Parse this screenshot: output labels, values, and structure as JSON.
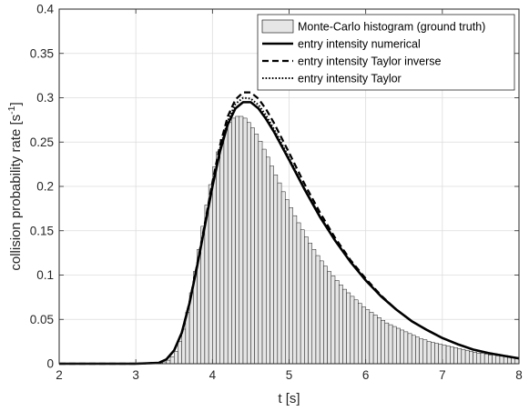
{
  "chart_data": {
    "type": "bar",
    "xlabel": "t [s]",
    "ylabel": "collision probability rate [s",
    "ylabel_superscript": "-1",
    "ylabel_close": "]",
    "xlim": [
      2,
      8
    ],
    "ylim": [
      0,
      0.4
    ],
    "xticks": [
      "2",
      "3",
      "4",
      "5",
      "6",
      "7",
      "8"
    ],
    "yticks": [
      "0",
      "0.05",
      "0.1",
      "0.15",
      "0.2",
      "0.25",
      "0.3",
      "0.35",
      "0.4"
    ],
    "grid": true,
    "legend_position": "top-right",
    "histogram": {
      "name": "Monte-Carlo histogram (ground truth)",
      "bin_start": 3.3,
      "bin_width": 0.05,
      "values": [
        0.001,
        0.002,
        0.004,
        0.008,
        0.014,
        0.025,
        0.039,
        0.058,
        0.08,
        0.104,
        0.129,
        0.155,
        0.179,
        0.202,
        0.222,
        0.239,
        0.253,
        0.264,
        0.272,
        0.277,
        0.279,
        0.279,
        0.277,
        0.272,
        0.266,
        0.259,
        0.251,
        0.242,
        0.233,
        0.223,
        0.213,
        0.204,
        0.194,
        0.185,
        0.176,
        0.167,
        0.159,
        0.151,
        0.143,
        0.136,
        0.129,
        0.122,
        0.116,
        0.11,
        0.104,
        0.099,
        0.094,
        0.089,
        0.084,
        0.08,
        0.076,
        0.072,
        0.068,
        0.064,
        0.061,
        0.058,
        0.055,
        0.052,
        0.049,
        0.046,
        0.044,
        0.042,
        0.04,
        0.038,
        0.036,
        0.034,
        0.032,
        0.03,
        0.028,
        0.027,
        0.025,
        0.024,
        0.023,
        0.022,
        0.021,
        0.02,
        0.019,
        0.018,
        0.017,
        0.016,
        0.015,
        0.014,
        0.013,
        0.012,
        0.012,
        0.011,
        0.01,
        0.01,
        0.009,
        0.009,
        0.008,
        0.008,
        0.007,
        0.007
      ]
    },
    "series": [
      {
        "name": "entry intensity numerical",
        "style": "solid",
        "x": [
          2,
          3,
          3.3,
          3.4,
          3.5,
          3.6,
          3.7,
          3.8,
          3.9,
          4.0,
          4.1,
          4.2,
          4.3,
          4.4,
          4.5,
          4.6,
          4.7,
          4.8,
          4.9,
          5.0,
          5.2,
          5.4,
          5.6,
          5.8,
          6.0,
          6.2,
          6.4,
          6.6,
          6.8,
          7.0,
          7.2,
          7.4,
          7.6,
          7.8,
          8.0
        ],
        "y": [
          0,
          0,
          0.001,
          0.005,
          0.015,
          0.035,
          0.068,
          0.11,
          0.155,
          0.2,
          0.24,
          0.27,
          0.288,
          0.295,
          0.295,
          0.288,
          0.276,
          0.262,
          0.246,
          0.23,
          0.197,
          0.166,
          0.139,
          0.115,
          0.094,
          0.076,
          0.061,
          0.048,
          0.038,
          0.029,
          0.022,
          0.016,
          0.012,
          0.009,
          0.006
        ]
      },
      {
        "name": "entry intensity Taylor inverse",
        "style": "dashed",
        "x": [
          2,
          3,
          3.3,
          3.4,
          3.5,
          3.6,
          3.7,
          3.8,
          3.9,
          4.0,
          4.1,
          4.2,
          4.3,
          4.4,
          4.5,
          4.6,
          4.7,
          4.8,
          4.9,
          5.0,
          5.2,
          5.4,
          5.6,
          5.8,
          6.0,
          6.2,
          6.4,
          6.6,
          6.8,
          7.0,
          7.2,
          7.4,
          7.6,
          7.8,
          8.0
        ],
        "y": [
          0,
          0,
          0.001,
          0.005,
          0.015,
          0.035,
          0.069,
          0.112,
          0.158,
          0.205,
          0.247,
          0.279,
          0.298,
          0.306,
          0.306,
          0.299,
          0.287,
          0.272,
          0.255,
          0.238,
          0.203,
          0.171,
          0.142,
          0.117,
          0.096,
          0.077,
          0.061,
          0.048,
          0.038,
          0.029,
          0.022,
          0.016,
          0.012,
          0.009,
          0.006
        ]
      },
      {
        "name": "entry intensity Taylor",
        "style": "dotted",
        "x": [
          2,
          3,
          3.3,
          3.4,
          3.5,
          3.6,
          3.7,
          3.8,
          3.9,
          4.0,
          4.1,
          4.2,
          4.3,
          4.4,
          4.5,
          4.6,
          4.7,
          4.8,
          4.9,
          5.0,
          5.2,
          5.4,
          5.6,
          5.8,
          6.0,
          6.2,
          6.4,
          6.6,
          6.8,
          7.0,
          7.2,
          7.4,
          7.6,
          7.8,
          8.0
        ],
        "y": [
          0,
          0,
          0.001,
          0.005,
          0.015,
          0.035,
          0.068,
          0.111,
          0.156,
          0.202,
          0.243,
          0.274,
          0.293,
          0.3,
          0.299,
          0.292,
          0.28,
          0.265,
          0.249,
          0.232,
          0.198,
          0.167,
          0.139,
          0.115,
          0.094,
          0.076,
          0.061,
          0.048,
          0.038,
          0.029,
          0.022,
          0.016,
          0.012,
          0.009,
          0.006
        ]
      }
    ]
  }
}
